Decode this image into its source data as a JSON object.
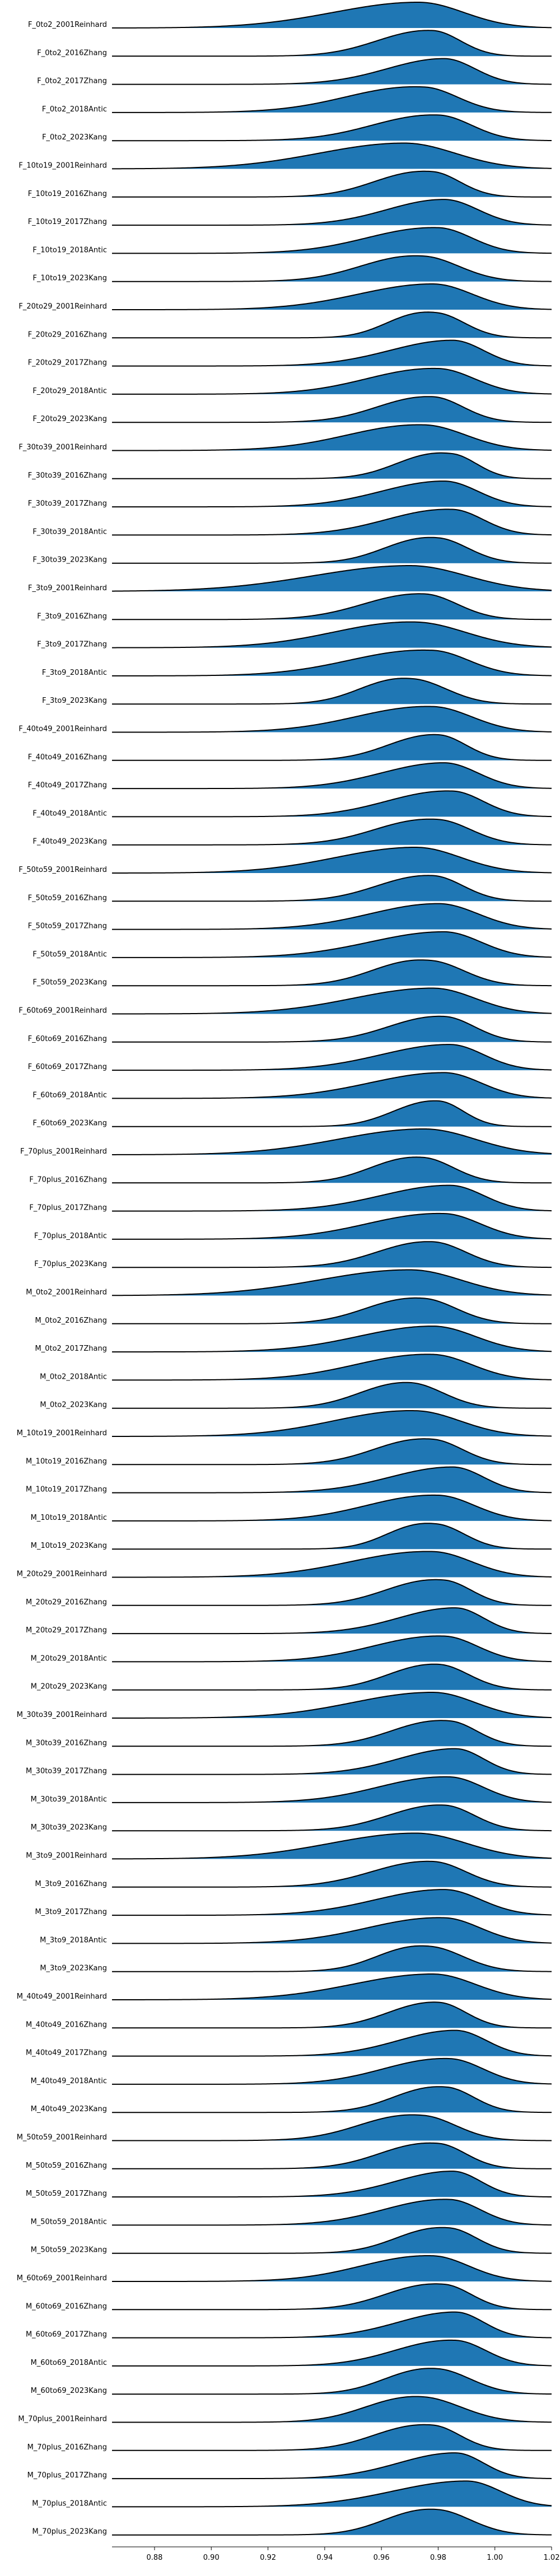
{
  "chart_data": {
    "type": "ridgeline",
    "title": "",
    "xlabel": "",
    "ylabel": "",
    "xlim": [
      0.865,
      1.02
    ],
    "x_ticks": [
      "0.88",
      "0.90",
      "0.92",
      "0.94",
      "0.96",
      "0.98",
      "1.00",
      "1.02"
    ],
    "fill_color": "#1f77b4",
    "line_color": "#000000",
    "series": [
      {
        "name": "F_0to2_2001Reinhard",
        "mode": 0.973,
        "spread_left": 0.03,
        "spread_right": 0.016,
        "skew": 0.0
      },
      {
        "name": "F_0to2_2016Zhang",
        "mode": 0.978,
        "spread_left": 0.018,
        "spread_right": 0.01,
        "skew": 0.1
      },
      {
        "name": "F_0to2_2017Zhang",
        "mode": 0.982,
        "spread_left": 0.02,
        "spread_right": 0.011,
        "skew": 0.0
      },
      {
        "name": "F_0to2_2018Antic",
        "mode": 0.975,
        "spread_left": 0.026,
        "spread_right": 0.012,
        "skew": 0.2
      },
      {
        "name": "F_0to2_2023Kang",
        "mode": 0.98,
        "spread_left": 0.022,
        "spread_right": 0.012,
        "skew": 0.1
      },
      {
        "name": "F_10to19_2001Reinhard",
        "mode": 0.968,
        "spread_left": 0.03,
        "spread_right": 0.018,
        "skew": 0.0
      },
      {
        "name": "F_10to19_2016Zhang",
        "mode": 0.978,
        "spread_left": 0.018,
        "spread_right": 0.01,
        "skew": 0.2
      },
      {
        "name": "F_10to19_2017Zhang",
        "mode": 0.982,
        "spread_left": 0.02,
        "spread_right": 0.012,
        "skew": 0.0
      },
      {
        "name": "F_10to19_2018Antic",
        "mode": 0.98,
        "spread_left": 0.024,
        "spread_right": 0.012,
        "skew": 0.1
      },
      {
        "name": "F_10to19_2023Kang",
        "mode": 0.975,
        "spread_left": 0.02,
        "spread_right": 0.013,
        "skew": 0.2
      },
      {
        "name": "F_20to29_2001Reinhard",
        "mode": 0.978,
        "spread_left": 0.026,
        "spread_right": 0.014,
        "skew": 0.0
      },
      {
        "name": "F_20to29_2016Zhang",
        "mode": 0.98,
        "spread_left": 0.014,
        "spread_right": 0.01,
        "skew": 0.3
      },
      {
        "name": "F_20to29_2017Zhang",
        "mode": 0.985,
        "spread_left": 0.022,
        "spread_right": 0.011,
        "skew": 0.0
      },
      {
        "name": "F_20to29_2018Antic",
        "mode": 0.98,
        "spread_left": 0.024,
        "spread_right": 0.013,
        "skew": 0.1
      },
      {
        "name": "F_20to29_2023Kang",
        "mode": 0.978,
        "spread_left": 0.018,
        "spread_right": 0.011,
        "skew": 0.1
      },
      {
        "name": "F_30to39_2001Reinhard",
        "mode": 0.975,
        "spread_left": 0.026,
        "spread_right": 0.015,
        "skew": 0.1
      },
      {
        "name": "F_30to39_2016Zhang",
        "mode": 0.985,
        "spread_left": 0.016,
        "spread_right": 0.009,
        "skew": 0.3
      },
      {
        "name": "F_30to39_2017Zhang",
        "mode": 0.982,
        "spread_left": 0.022,
        "spread_right": 0.012,
        "skew": 0.0
      },
      {
        "name": "F_30to39_2018Antic",
        "mode": 0.985,
        "spread_left": 0.022,
        "spread_right": 0.011,
        "skew": 0.1
      },
      {
        "name": "F_30to39_2023Kang",
        "mode": 0.98,
        "spread_left": 0.016,
        "spread_right": 0.011,
        "skew": 0.2
      },
      {
        "name": "F_3to9_2001Reinhard",
        "mode": 0.97,
        "spread_left": 0.034,
        "spread_right": 0.02,
        "skew": 0.0
      },
      {
        "name": "F_3to9_2016Zhang",
        "mode": 0.975,
        "spread_left": 0.02,
        "spread_right": 0.012,
        "skew": 0.1
      },
      {
        "name": "F_3to9_2017Zhang",
        "mode": 0.972,
        "spread_left": 0.028,
        "spread_right": 0.018,
        "skew": 0.1
      },
      {
        "name": "F_3to9_2018Antic",
        "mode": 0.978,
        "spread_left": 0.028,
        "spread_right": 0.013,
        "skew": 0.2
      },
      {
        "name": "F_3to9_2023Kang",
        "mode": 0.972,
        "spread_left": 0.016,
        "spread_right": 0.012,
        "skew": 0.3
      },
      {
        "name": "F_40to49_2001Reinhard",
        "mode": 0.978,
        "spread_left": 0.026,
        "spread_right": 0.014,
        "skew": 0.1
      },
      {
        "name": "F_40to49_2016Zhang",
        "mode": 0.98,
        "spread_left": 0.016,
        "spread_right": 0.01,
        "skew": 0.1
      },
      {
        "name": "F_40to49_2017Zhang",
        "mode": 0.982,
        "spread_left": 0.022,
        "spread_right": 0.012,
        "skew": 0.0
      },
      {
        "name": "F_40to49_2018Antic",
        "mode": 0.985,
        "spread_left": 0.022,
        "spread_right": 0.011,
        "skew": 0.1
      },
      {
        "name": "F_40to49_2023Kang",
        "mode": 0.98,
        "spread_left": 0.02,
        "spread_right": 0.012,
        "skew": 0.2
      },
      {
        "name": "F_50to59_2001Reinhard",
        "mode": 0.972,
        "spread_left": 0.028,
        "spread_right": 0.016,
        "skew": 0.0
      },
      {
        "name": "F_50to59_2016Zhang",
        "mode": 0.978,
        "spread_left": 0.018,
        "spread_right": 0.011,
        "skew": 0.1
      },
      {
        "name": "F_50to59_2017Zhang",
        "mode": 0.98,
        "spread_left": 0.024,
        "spread_right": 0.014,
        "skew": 0.0
      },
      {
        "name": "F_50to59_2018Antic",
        "mode": 0.982,
        "spread_left": 0.026,
        "spread_right": 0.013,
        "skew": 0.0
      },
      {
        "name": "F_50to59_2023Kang",
        "mode": 0.978,
        "spread_left": 0.018,
        "spread_right": 0.012,
        "skew": 0.3
      },
      {
        "name": "F_60to69_2001Reinhard",
        "mode": 0.978,
        "spread_left": 0.028,
        "spread_right": 0.015,
        "skew": 0.0
      },
      {
        "name": "F_60to69_2016Zhang",
        "mode": 0.982,
        "spread_left": 0.018,
        "spread_right": 0.011,
        "skew": 0.1
      },
      {
        "name": "F_60to69_2017Zhang",
        "mode": 0.984,
        "spread_left": 0.024,
        "spread_right": 0.012,
        "skew": 0.0
      },
      {
        "name": "F_60to69_2018Antic",
        "mode": 0.982,
        "spread_left": 0.026,
        "spread_right": 0.013,
        "skew": 0.0
      },
      {
        "name": "F_60to69_2023Kang",
        "mode": 0.98,
        "spread_left": 0.014,
        "spread_right": 0.009,
        "skew": 0.1
      },
      {
        "name": "F_70plus_2001Reinhard",
        "mode": 0.975,
        "spread_left": 0.03,
        "spread_right": 0.018,
        "skew": 0.0
      },
      {
        "name": "F_70plus_2016Zhang",
        "mode": 0.975,
        "spread_left": 0.016,
        "spread_right": 0.011,
        "skew": 0.2
      },
      {
        "name": "F_70plus_2017Zhang",
        "mode": 0.984,
        "spread_left": 0.024,
        "spread_right": 0.012,
        "skew": 0.0
      },
      {
        "name": "F_70plus_2018Antic",
        "mode": 0.982,
        "spread_left": 0.026,
        "spread_right": 0.013,
        "skew": 0.1
      },
      {
        "name": "F_70plus_2023Kang",
        "mode": 0.978,
        "spread_left": 0.018,
        "spread_right": 0.012,
        "skew": 0.1
      },
      {
        "name": "M_0to2_2001Reinhard",
        "mode": 0.97,
        "spread_left": 0.032,
        "spread_right": 0.018,
        "skew": 0.0
      },
      {
        "name": "M_0to2_2016Zhang",
        "mode": 0.975,
        "spread_left": 0.018,
        "spread_right": 0.012,
        "skew": 0.2
      },
      {
        "name": "M_0to2_2017Zhang",
        "mode": 0.978,
        "spread_left": 0.026,
        "spread_right": 0.015,
        "skew": 0.0
      },
      {
        "name": "M_0to2_2018Antic",
        "mode": 0.978,
        "spread_left": 0.026,
        "spread_right": 0.014,
        "skew": 0.1
      },
      {
        "name": "M_0to2_2023Kang",
        "mode": 0.97,
        "spread_left": 0.016,
        "spread_right": 0.012,
        "skew": 0.1
      },
      {
        "name": "M_10to19_2001Reinhard",
        "mode": 0.972,
        "spread_left": 0.028,
        "spread_right": 0.016,
        "skew": 0.1
      },
      {
        "name": "M_10to19_2016Zhang",
        "mode": 0.978,
        "spread_left": 0.018,
        "spread_right": 0.011,
        "skew": 0.2
      },
      {
        "name": "M_10to19_2017Zhang",
        "mode": 0.985,
        "spread_left": 0.022,
        "spread_right": 0.011,
        "skew": 0.0
      },
      {
        "name": "M_10to19_2018Antic",
        "mode": 0.98,
        "spread_left": 0.024,
        "spread_right": 0.013,
        "skew": 0.1
      },
      {
        "name": "M_10to19_2023Kang",
        "mode": 0.98,
        "spread_left": 0.014,
        "spread_right": 0.01,
        "skew": 0.3
      },
      {
        "name": "M_20to29_2001Reinhard",
        "mode": 0.978,
        "spread_left": 0.028,
        "spread_right": 0.014,
        "skew": 0.1
      },
      {
        "name": "M_20to29_2016Zhang",
        "mode": 0.982,
        "spread_left": 0.018,
        "spread_right": 0.01,
        "skew": 0.2
      },
      {
        "name": "M_20to29_2017Zhang",
        "mode": 0.986,
        "spread_left": 0.02,
        "spread_right": 0.01,
        "skew": 0.0
      },
      {
        "name": "M_20to29_2018Antic",
        "mode": 0.982,
        "spread_left": 0.024,
        "spread_right": 0.012,
        "skew": 0.1
      },
      {
        "name": "M_20to29_2023Kang",
        "mode": 0.98,
        "spread_left": 0.016,
        "spread_right": 0.011,
        "skew": 0.1
      },
      {
        "name": "M_30to39_2001Reinhard",
        "mode": 0.978,
        "spread_left": 0.028,
        "spread_right": 0.015,
        "skew": 0.0
      },
      {
        "name": "M_30to39_2016Zhang",
        "mode": 0.984,
        "spread_left": 0.018,
        "spread_right": 0.01,
        "skew": 0.2
      },
      {
        "name": "M_30to39_2017Zhang",
        "mode": 0.986,
        "spread_left": 0.02,
        "spread_right": 0.01,
        "skew": 0.0
      },
      {
        "name": "M_30to39_2018Antic",
        "mode": 0.984,
        "spread_left": 0.024,
        "spread_right": 0.012,
        "skew": 0.1
      },
      {
        "name": "M_30to39_2023Kang",
        "mode": 0.982,
        "spread_left": 0.018,
        "spread_right": 0.011,
        "skew": 0.1
      },
      {
        "name": "M_3to9_2001Reinhard",
        "mode": 0.972,
        "spread_left": 0.03,
        "spread_right": 0.018,
        "skew": 0.0
      },
      {
        "name": "M_3to9_2016Zhang",
        "mode": 0.978,
        "spread_left": 0.02,
        "spread_right": 0.012,
        "skew": 0.1
      },
      {
        "name": "M_3to9_2017Zhang",
        "mode": 0.982,
        "spread_left": 0.024,
        "spread_right": 0.013,
        "skew": 0.0
      },
      {
        "name": "M_3to9_2018Antic",
        "mode": 0.982,
        "spread_left": 0.026,
        "spread_right": 0.013,
        "skew": 0.1
      },
      {
        "name": "M_3to9_2023Kang",
        "mode": 0.978,
        "spread_left": 0.016,
        "spread_right": 0.012,
        "skew": 0.3
      },
      {
        "name": "M_40to49_2001Reinhard",
        "mode": 0.978,
        "spread_left": 0.028,
        "spread_right": 0.015,
        "skew": 0.0
      },
      {
        "name": "M_40to49_2016Zhang",
        "mode": 0.98,
        "spread_left": 0.016,
        "spread_right": 0.01,
        "skew": 0.1
      },
      {
        "name": "M_40to49_2017Zhang",
        "mode": 0.986,
        "spread_left": 0.02,
        "spread_right": 0.011,
        "skew": 0.0
      },
      {
        "name": "M_40to49_2018Antic",
        "mode": 0.984,
        "spread_left": 0.022,
        "spread_right": 0.012,
        "skew": 0.1
      },
      {
        "name": "M_40to49_2023Kang",
        "mode": 0.983,
        "spread_left": 0.016,
        "spread_right": 0.01,
        "skew": 0.2
      },
      {
        "name": "M_50to59_2001Reinhard",
        "mode": 0.975,
        "spread_left": 0.02,
        "spread_right": 0.012,
        "skew": 0.3
      },
      {
        "name": "M_50to59_2016Zhang",
        "mode": 0.98,
        "spread_left": 0.018,
        "spread_right": 0.01,
        "skew": 0.2
      },
      {
        "name": "M_50to59_2017Zhang",
        "mode": 0.985,
        "spread_left": 0.02,
        "spread_right": 0.01,
        "skew": 0.0
      },
      {
        "name": "M_50to59_2018Antic",
        "mode": 0.984,
        "spread_left": 0.022,
        "spread_right": 0.011,
        "skew": 0.1
      },
      {
        "name": "M_50to59_2023Kang",
        "mode": 0.984,
        "spread_left": 0.016,
        "spread_right": 0.01,
        "skew": 0.2
      },
      {
        "name": "M_60to69_2001Reinhard",
        "mode": 0.978,
        "spread_left": 0.024,
        "spread_right": 0.013,
        "skew": 0.1
      },
      {
        "name": "M_60to69_2016Zhang",
        "mode": 0.982,
        "spread_left": 0.018,
        "spread_right": 0.01,
        "skew": 0.2
      },
      {
        "name": "M_60to69_2017Zhang",
        "mode": 0.986,
        "spread_left": 0.02,
        "spread_right": 0.01,
        "skew": 0.0
      },
      {
        "name": "M_60to69_2018Antic",
        "mode": 0.986,
        "spread_left": 0.02,
        "spread_right": 0.011,
        "skew": 0.1
      },
      {
        "name": "M_60to69_2023Kang",
        "mode": 0.98,
        "spread_left": 0.016,
        "spread_right": 0.012,
        "skew": 0.2
      },
      {
        "name": "M_70plus_2001Reinhard",
        "mode": 0.975,
        "spread_left": 0.018,
        "spread_right": 0.014,
        "skew": 0.2
      },
      {
        "name": "M_70plus_2016Zhang",
        "mode": 0.978,
        "spread_left": 0.018,
        "spread_right": 0.01,
        "skew": 0.2
      },
      {
        "name": "M_70plus_2017Zhang",
        "mode": 0.986,
        "spread_left": 0.02,
        "spread_right": 0.01,
        "skew": 0.0
      },
      {
        "name": "M_70plus_2018Antic",
        "mode": 0.99,
        "spread_left": 0.026,
        "spread_right": 0.012,
        "skew": 0.0
      },
      {
        "name": "M_70plus_2023Kang",
        "mode": 0.98,
        "spread_left": 0.016,
        "spread_right": 0.012,
        "skew": 0.2
      }
    ]
  }
}
